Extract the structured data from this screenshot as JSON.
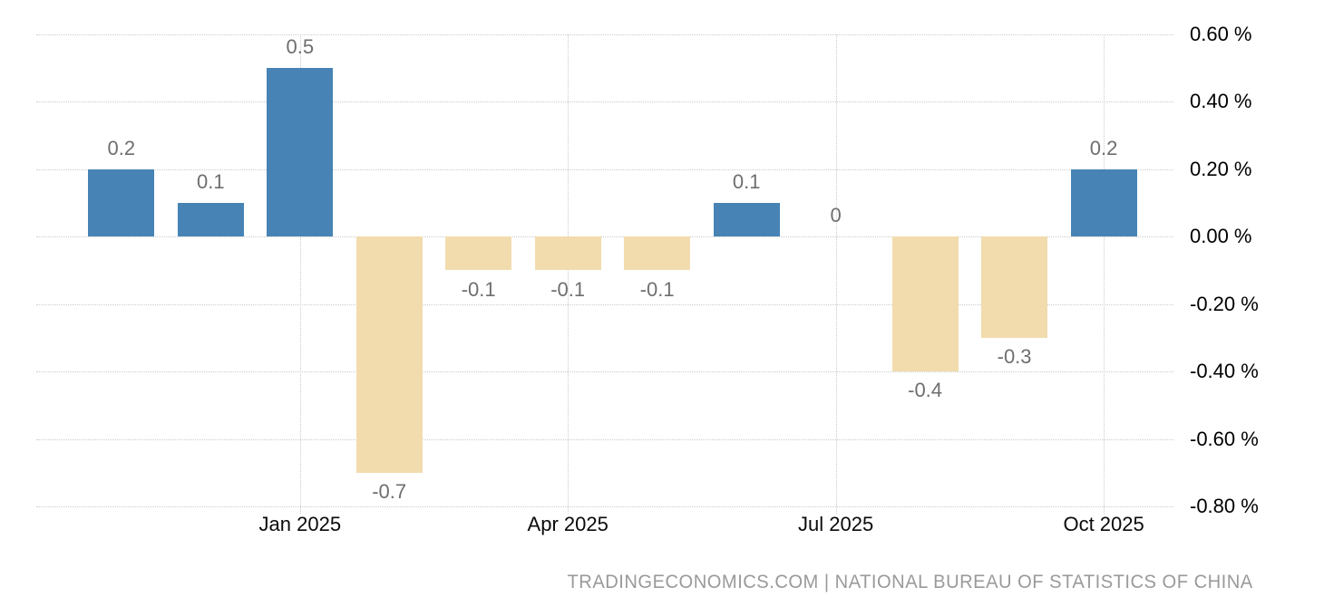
{
  "chart_data": {
    "type": "bar",
    "title": "",
    "xlabel": "",
    "ylabel": "",
    "unit": "%",
    "values": [
      0.2,
      0.1,
      0.5,
      -0.7,
      -0.1,
      -0.1,
      -0.1,
      0.1,
      0,
      -0.4,
      -0.3,
      0.2
    ],
    "bar_labels": [
      "0.2",
      "0.1",
      "0.5",
      "-0.7",
      "-0.1",
      "-0.1",
      "-0.1",
      "0.1",
      "0",
      "-0.4",
      "-0.3",
      "0.2"
    ],
    "x_ticks": [
      {
        "label": "Jan 2025",
        "index": 2
      },
      {
        "label": "Apr 2025",
        "index": 5
      },
      {
        "label": "Jul 2025",
        "index": 8
      },
      {
        "label": "Oct 2025",
        "index": 11
      }
    ],
    "y_ticks": [
      "0.60 %",
      "0.40 %",
      "0.20 %",
      "0.00 %",
      "-0.20 %",
      "-0.40 %",
      "-0.60 %",
      "-0.80 %"
    ],
    "y_tick_values": [
      0.6,
      0.4,
      0.2,
      0,
      -0.2,
      -0.4,
      -0.6,
      -0.8
    ],
    "ylim": [
      -0.8,
      0.6
    ],
    "grid": true,
    "legend_position": "none",
    "colors": {
      "positive_bar": "#4784b5",
      "negative_bar": "#f2dcae",
      "gridline": "#cbcbcb",
      "bar_label_text": "#6e6e6e",
      "axis_text": "#000000",
      "source_text": "#9a9a9a"
    },
    "source_text": "TRADINGECONOMICS.COM | NATIONAL BUREAU OF STATISTICS OF CHINA"
  }
}
